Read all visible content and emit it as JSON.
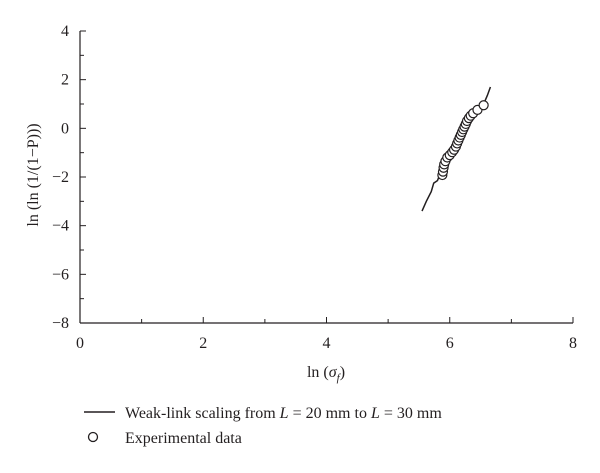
{
  "chart_data": {
    "type": "scatter",
    "title": "",
    "xlabel": "ln (σ_f)",
    "ylabel": "ln (ln (1/(1−P)))",
    "xlim": [
      0,
      8
    ],
    "ylim": [
      -8,
      4
    ],
    "x_ticks": [
      0,
      2,
      4,
      6,
      8
    ],
    "y_ticks": [
      4,
      2,
      0,
      -2,
      -4,
      -6,
      -8
    ],
    "grid": false,
    "legend_position": "bottom",
    "legend": {
      "line_label": {
        "prefix": "Weak-link scaling from ",
        "var1": "L",
        "mid1": " = 20 mm  to ",
        "var2": "L",
        "mid2": " = 30 mm"
      },
      "points_label": "Experimental data"
    },
    "series": [
      {
        "kind": "line",
        "points": [
          [
            5.55,
            -3.4
          ],
          [
            5.62,
            -3.0
          ],
          [
            5.7,
            -2.6
          ],
          [
            5.74,
            -2.25
          ],
          [
            5.8,
            -2.15
          ],
          [
            5.84,
            -1.9
          ],
          [
            5.88,
            -1.6
          ],
          [
            5.93,
            -1.4
          ],
          [
            5.99,
            -1.15
          ],
          [
            6.04,
            -0.9
          ],
          [
            6.08,
            -0.65
          ],
          [
            6.12,
            -0.4
          ],
          [
            6.17,
            -0.15
          ],
          [
            6.22,
            0.1
          ],
          [
            6.27,
            0.35
          ],
          [
            6.33,
            0.55
          ],
          [
            6.4,
            0.7
          ],
          [
            6.47,
            0.85
          ],
          [
            6.55,
            1.0
          ],
          [
            6.61,
            1.35
          ],
          [
            6.66,
            1.7
          ]
        ]
      },
      {
        "kind": "scatter",
        "points": [
          [
            5.88,
            -1.92
          ],
          [
            5.89,
            -1.78
          ],
          [
            5.9,
            -1.62
          ],
          [
            5.91,
            -1.48
          ],
          [
            5.93,
            -1.35
          ],
          [
            5.96,
            -1.2
          ],
          [
            6.0,
            -1.1
          ],
          [
            6.04,
            -0.98
          ],
          [
            6.07,
            -0.88
          ],
          [
            6.1,
            -0.75
          ],
          [
            6.12,
            -0.62
          ],
          [
            6.14,
            -0.5
          ],
          [
            6.16,
            -0.38
          ],
          [
            6.18,
            -0.27
          ],
          [
            6.2,
            -0.15
          ],
          [
            6.22,
            -0.04
          ],
          [
            6.24,
            0.07
          ],
          [
            6.26,
            0.18
          ],
          [
            6.28,
            0.3
          ],
          [
            6.31,
            0.42
          ],
          [
            6.34,
            0.52
          ],
          [
            6.38,
            0.62
          ],
          [
            6.45,
            0.76
          ],
          [
            6.55,
            0.95
          ]
        ]
      }
    ]
  }
}
